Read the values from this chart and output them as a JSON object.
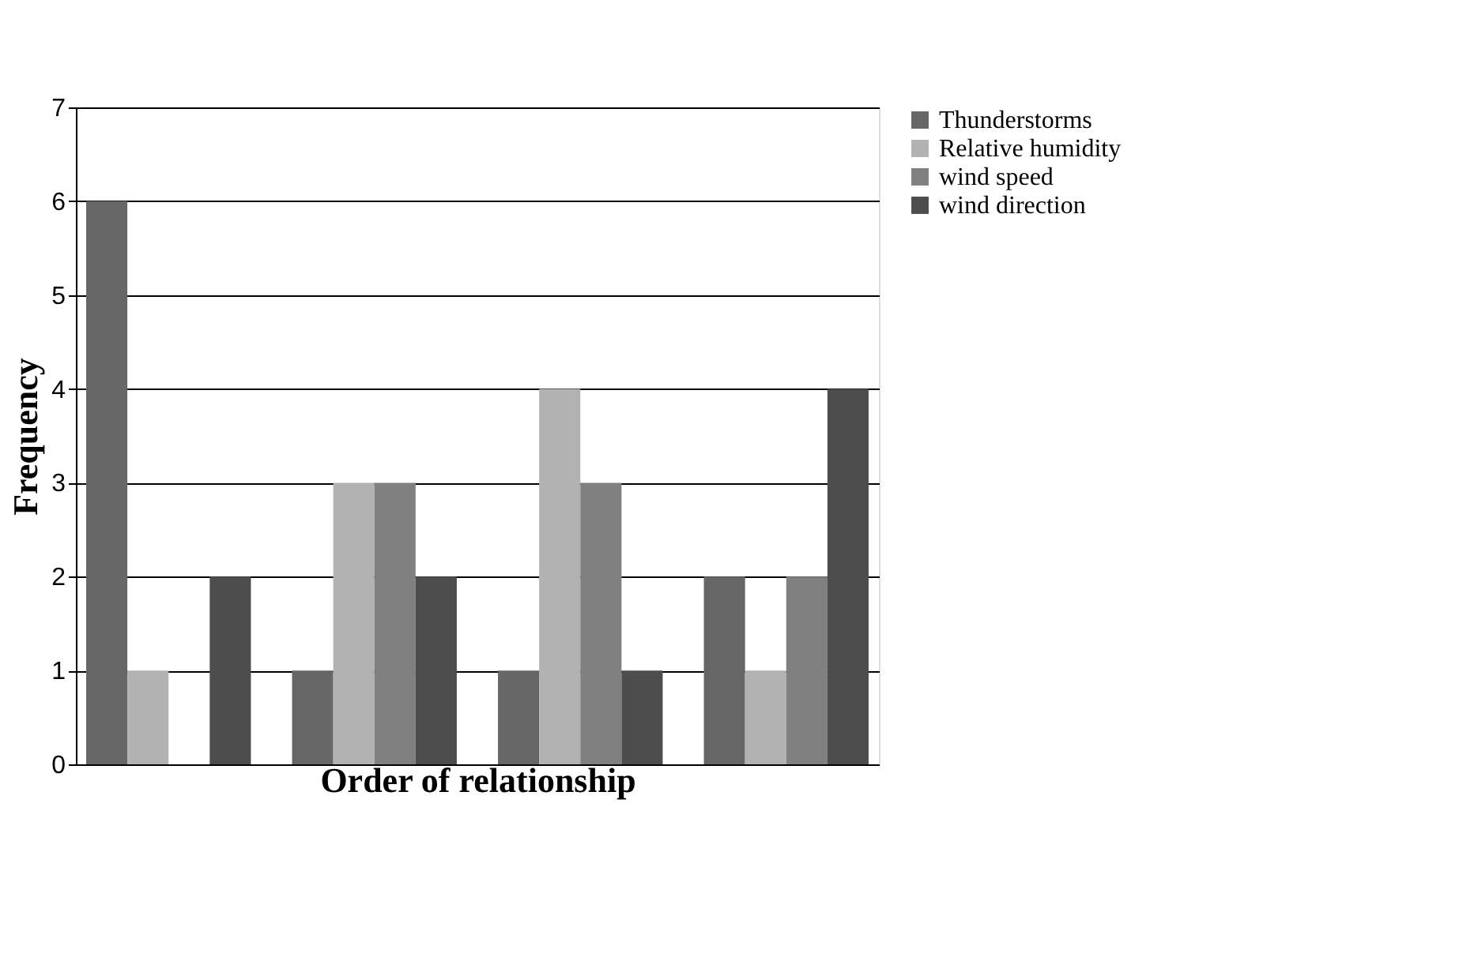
{
  "chart_data": {
    "type": "bar",
    "xlabel": "Order of relationship",
    "ylabel": "Frequency",
    "categories": [
      null,
      null,
      null,
      null
    ],
    "series": [
      {
        "name": "Thunderstorms",
        "color": "#666666",
        "values": [
          6,
          1,
          1,
          2
        ]
      },
      {
        "name": "Relative humidity",
        "color": "#b2b2b2",
        "values": [
          1,
          3,
          4,
          1
        ]
      },
      {
        "name": "wind speed",
        "color": "#808080",
        "values": [
          0,
          3,
          3,
          2
        ]
      },
      {
        "name": "wind direction",
        "color": "#4d4d4d",
        "values": [
          2,
          2,
          1,
          4
        ]
      }
    ],
    "ylim": [
      0,
      7
    ],
    "yticks": [
      0,
      1,
      2,
      3,
      4,
      5,
      6,
      7
    ],
    "grid": "y",
    "legend": "right",
    "tick_labels": "y"
  }
}
